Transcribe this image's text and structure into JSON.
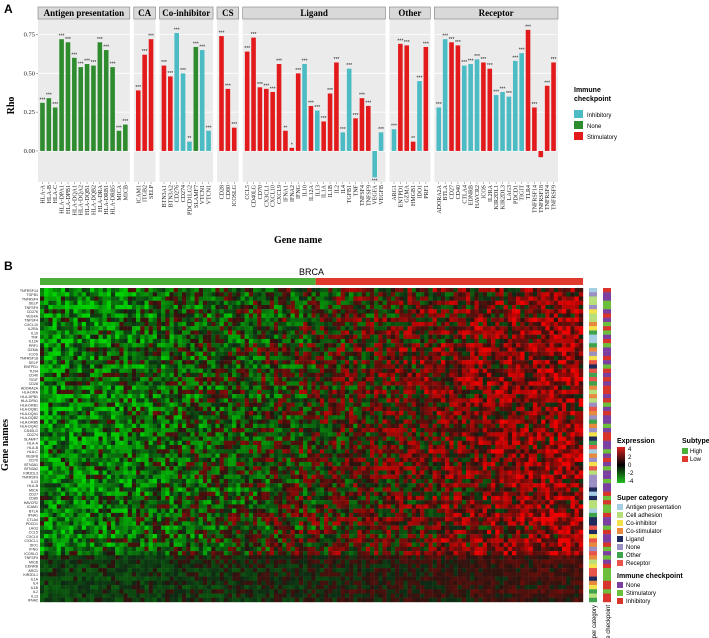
{
  "panel_a": "A",
  "panel_b": "B",
  "chart_data": [
    {
      "type": "bar",
      "xlabel": "Gene name",
      "ylabel": "Rho",
      "ylim": [
        -0.2,
        0.85
      ],
      "yticks": [
        "0.00",
        "0.25",
        "0.50",
        "0.75"
      ],
      "ytick_values": [
        0,
        0.25,
        0.5,
        0.75
      ],
      "grid": true,
      "legend_title": "Immune checkpoint",
      "legend_position": "right",
      "legend": [
        {
          "name": "Inhibitory",
          "color": "#4BBCC4"
        },
        {
          "name": "None",
          "color": "#2E8B2E"
        },
        {
          "name": "Stimulatory",
          "color": "#E31A1C"
        }
      ],
      "facets": [
        {
          "name": "Antigen presentation",
          "genes": [
            {
              "gene": "HLA-A",
              "value": 0.31,
              "type": "None",
              "sig": "***"
            },
            {
              "gene": "HLA-B",
              "value": 0.34,
              "type": "None",
              "sig": "***"
            },
            {
              "gene": "HLA-C",
              "value": 0.28,
              "type": "None",
              "sig": "***"
            },
            {
              "gene": "HLA-DPA1",
              "value": 0.72,
              "type": "None",
              "sig": "***"
            },
            {
              "gene": "HLA-DPB1",
              "value": 0.7,
              "type": "None",
              "sig": "***"
            },
            {
              "gene": "HLA-DQA1",
              "value": 0.6,
              "type": "None",
              "sig": "***"
            },
            {
              "gene": "HLA-DQA2",
              "value": 0.54,
              "type": "None",
              "sig": "***"
            },
            {
              "gene": "HLA-DQB1",
              "value": 0.56,
              "type": "None",
              "sig": "***"
            },
            {
              "gene": "HLA-DQB2",
              "value": 0.55,
              "type": "None",
              "sig": "***"
            },
            {
              "gene": "HLA-DRA",
              "value": 0.7,
              "type": "None",
              "sig": "***"
            },
            {
              "gene": "HLA-DRB1",
              "value": 0.65,
              "type": "None",
              "sig": "***"
            },
            {
              "gene": "HLA-DRB5",
              "value": 0.54,
              "type": "None",
              "sig": "***"
            },
            {
              "gene": "MICA",
              "value": 0.13,
              "type": "None",
              "sig": "***"
            },
            {
              "gene": "MICB",
              "value": 0.17,
              "type": "None",
              "sig": "***"
            }
          ]
        },
        {
          "name": "CA",
          "genes": [
            {
              "gene": "ICAM1",
              "value": 0.39,
              "type": "Stimulatory",
              "sig": "***"
            },
            {
              "gene": "ITGB2",
              "value": 0.62,
              "type": "Stimulatory",
              "sig": "***"
            },
            {
              "gene": "SELP",
              "value": 0.72,
              "type": "Stimulatory",
              "sig": "***"
            }
          ]
        },
        {
          "name": "Co-inhibitor",
          "genes": [
            {
              "gene": "BTN3A1",
              "value": 0.55,
              "type": "Stimulatory",
              "sig": "***"
            },
            {
              "gene": "BTN3A2",
              "value": 0.48,
              "type": "Stimulatory",
              "sig": "***"
            },
            {
              "gene": "CD276",
              "value": 0.76,
              "type": "Inhibitory",
              "sig": "***"
            },
            {
              "gene": "CD274",
              "value": 0.5,
              "type": "Inhibitory",
              "sig": "***"
            },
            {
              "gene": "PDCD1LG2",
              "value": 0.06,
              "type": "Inhibitory",
              "sig": "**"
            },
            {
              "gene": "SLAMF7",
              "value": 0.67,
              "type": "None",
              "sig": "***"
            },
            {
              "gene": "VTCN1",
              "value": 0.65,
              "type": "Inhibitory",
              "sig": "***"
            },
            {
              "gene": "VTCN1",
              "value": 0.13,
              "type": "Inhibitory",
              "sig": "***"
            }
          ]
        },
        {
          "name": "CS",
          "genes": [
            {
              "gene": "CD28",
              "value": 0.74,
              "type": "Stimulatory",
              "sig": "***"
            },
            {
              "gene": "CD80",
              "value": 0.4,
              "type": "Stimulatory",
              "sig": "***"
            },
            {
              "gene": "ICOSLG",
              "value": 0.15,
              "type": "Stimulatory",
              "sig": "***"
            }
          ]
        },
        {
          "name": "Ligand",
          "genes": [
            {
              "gene": "CCL5",
              "value": 0.64,
              "type": "Stimulatory",
              "sig": "***"
            },
            {
              "gene": "CD40LG",
              "value": 0.73,
              "type": "Stimulatory",
              "sig": "***"
            },
            {
              "gene": "CD70",
              "value": 0.41,
              "type": "Stimulatory",
              "sig": "***"
            },
            {
              "gene": "CX3CL1",
              "value": 0.4,
              "type": "Stimulatory",
              "sig": "***"
            },
            {
              "gene": "CXCL10",
              "value": 0.38,
              "type": "Stimulatory",
              "sig": "***"
            },
            {
              "gene": "CXCL9",
              "value": 0.56,
              "type": "Stimulatory",
              "sig": "***"
            },
            {
              "gene": "IFNA1",
              "value": 0.13,
              "type": "Stimulatory",
              "sig": "**"
            },
            {
              "gene": "IFNA2",
              "value": 0.02,
              "type": "Stimulatory",
              "sig": "*"
            },
            {
              "gene": "IFNG",
              "value": 0.5,
              "type": "Stimulatory",
              "sig": "***"
            },
            {
              "gene": "IL10",
              "value": 0.56,
              "type": "Inhibitory",
              "sig": "***"
            },
            {
              "gene": "IL12A",
              "value": 0.29,
              "type": "Stimulatory",
              "sig": "***"
            },
            {
              "gene": "IL13",
              "value": 0.26,
              "type": "Inhibitory",
              "sig": "***"
            },
            {
              "gene": "IL1A",
              "value": 0.19,
              "type": "Stimulatory",
              "sig": "***"
            },
            {
              "gene": "IL1B",
              "value": 0.37,
              "type": "Stimulatory",
              "sig": "***"
            },
            {
              "gene": "IL2",
              "value": 0.57,
              "type": "Stimulatory",
              "sig": "***"
            },
            {
              "gene": "IL4",
              "value": 0.12,
              "type": "Inhibitory",
              "sig": "***"
            },
            {
              "gene": "TGFB1",
              "value": 0.53,
              "type": "Inhibitory",
              "sig": "***"
            },
            {
              "gene": "TNF",
              "value": 0.21,
              "type": "Stimulatory",
              "sig": "***"
            },
            {
              "gene": "TNFSF4",
              "value": 0.34,
              "type": "Stimulatory",
              "sig": "***"
            },
            {
              "gene": "TNFSF9",
              "value": 0.29,
              "type": "Stimulatory",
              "sig": "***"
            },
            {
              "gene": "VEGFA",
              "value": -0.17,
              "type": "Inhibitory",
              "sig": "***"
            },
            {
              "gene": "VEGFB",
              "value": 0.12,
              "type": "Inhibitory",
              "sig": "***"
            }
          ]
        },
        {
          "name": "Other",
          "genes": [
            {
              "gene": "ARG1",
              "value": 0.14,
              "type": "Inhibitory",
              "sig": "***"
            },
            {
              "gene": "ENTPD1",
              "value": 0.69,
              "type": "Stimulatory",
              "sig": "***"
            },
            {
              "gene": "GZMA",
              "value": 0.68,
              "type": "Stimulatory",
              "sig": "***"
            },
            {
              "gene": "HMGB1",
              "value": 0.06,
              "type": "Stimulatory",
              "sig": "**"
            },
            {
              "gene": "IDO1",
              "value": 0.45,
              "type": "Inhibitory",
              "sig": "***"
            },
            {
              "gene": "PRF1",
              "value": 0.67,
              "type": "Stimulatory",
              "sig": "***"
            }
          ]
        },
        {
          "name": "Receptor",
          "genes": [
            {
              "gene": "ADORA2A",
              "value": 0.28,
              "type": "Inhibitory",
              "sig": "***"
            },
            {
              "gene": "BTLA",
              "value": 0.72,
              "type": "Inhibitory",
              "sig": "***"
            },
            {
              "gene": "CD27",
              "value": 0.7,
              "type": "Stimulatory",
              "sig": "***"
            },
            {
              "gene": "CD40",
              "value": 0.68,
              "type": "Stimulatory",
              "sig": "***"
            },
            {
              "gene": "CTLA4",
              "value": 0.55,
              "type": "Inhibitory",
              "sig": "***"
            },
            {
              "gene": "EDNRB",
              "value": 0.56,
              "type": "Inhibitory",
              "sig": "***"
            },
            {
              "gene": "HAVCR2",
              "value": 0.59,
              "type": "Inhibitory",
              "sig": "***"
            },
            {
              "gene": "ICOS",
              "value": 0.57,
              "type": "Stimulatory",
              "sig": "***"
            },
            {
              "gene": "IL2RA",
              "value": 0.53,
              "type": "Stimulatory",
              "sig": "***"
            },
            {
              "gene": "KIR2DL1",
              "value": 0.36,
              "type": "Inhibitory",
              "sig": "***"
            },
            {
              "gene": "KIR2DL3",
              "value": 0.38,
              "type": "Inhibitory",
              "sig": "***"
            },
            {
              "gene": "LAG3",
              "value": 0.35,
              "type": "Inhibitory",
              "sig": "***"
            },
            {
              "gene": "PDCD1",
              "value": 0.58,
              "type": "Inhibitory",
              "sig": "***"
            },
            {
              "gene": "TIGIT",
              "value": 0.63,
              "type": "Inhibitory",
              "sig": "***"
            },
            {
              "gene": "TLR4",
              "value": 0.78,
              "type": "Stimulatory",
              "sig": "***"
            },
            {
              "gene": "TNFRSF14",
              "value": 0.28,
              "type": "Stimulatory",
              "sig": "***"
            },
            {
              "gene": "TNFRSF18",
              "value": -0.04,
              "type": "Stimulatory",
              "sig": ""
            },
            {
              "gene": "TNFRSF4",
              "value": 0.42,
              "type": "Stimulatory",
              "sig": "***"
            },
            {
              "gene": "TNFRSF9",
              "value": 0.57,
              "type": "Stimulatory",
              "sig": "***"
            }
          ]
        }
      ]
    },
    {
      "type": "heatmap",
      "title": "BRCA",
      "ylabel": "Gene names",
      "subtype_title": "Subtype",
      "subtype_legend": [
        {
          "name": "High",
          "color": "#4CAF3A"
        },
        {
          "name": "Low",
          "color": "#E03A2F"
        }
      ],
      "expression_title": "Expression",
      "expression_ticks": [
        "4",
        "2",
        "0",
        "-2",
        "-4"
      ],
      "super_category_title": "Super category",
      "super_category_legend": [
        {
          "name": "Antigen presentation",
          "color": "#A6CEE3"
        },
        {
          "name": "Cell adhesion",
          "color": "#B8E07A"
        },
        {
          "name": "Co-inhibitor",
          "color": "#F2E14A"
        },
        {
          "name": "Co-stimulator",
          "color": "#E78A3E"
        },
        {
          "name": "Ligand",
          "color": "#1F2A5C"
        },
        {
          "name": "None",
          "color": "#9B8FC4"
        },
        {
          "name": "Other",
          "color": "#3FA34D"
        },
        {
          "name": "Receptor",
          "color": "#E8534A"
        }
      ],
      "immune_checkpoint_title": "Immune checkpoint",
      "immune_checkpoint_legend": [
        {
          "name": "None",
          "color": "#7B3FA0"
        },
        {
          "name": "Stimulatory",
          "color": "#6CBF3A"
        },
        {
          "name": "Inhibitory",
          "color": "#D7342B"
        }
      ],
      "bar_labels": [
        "Super category",
        "Immune checkpoint"
      ],
      "row_labels": [
        "TNFRSF14",
        "TGFB1",
        "TNFRSF4",
        "SELP",
        "TNFSF9",
        "CD276",
        "VEGFA",
        "TNFSF4",
        "CXCL10",
        "IL2RA",
        "IL10",
        "TNF",
        "IL12A",
        "PRF1",
        "GZMA",
        "ICOS",
        "TNFRSF18",
        "SELP",
        "ENTPD1",
        "TLR4",
        "CD40",
        "TIGIT",
        "CD28",
        "ADORA2A",
        "HLA-DRA",
        "HLA-DPB1",
        "HLA-DPA1",
        "HLA-DRB1",
        "HLA-DQB1",
        "HLA-DQA1",
        "HLA-DQB2",
        "HLA-DRB5",
        "HLA-DQA2",
        "CD40LG",
        "CD274",
        "SLAMF7",
        "HLA-A",
        "HLA-B",
        "HLA-C",
        "VEGFB",
        "CD70",
        "BTN3A1",
        "BTN3A2",
        "KIR2DL3",
        "TNFRSF9",
        "IL13",
        "HLA-B",
        "MICA",
        "CD27",
        "CD80",
        "HAVCR2",
        "ICAM1",
        "BTLA",
        "IFNA1",
        "CTLA4",
        "PDCD1",
        "LAG3",
        "CCL5",
        "CXCL9",
        "CX3CL1",
        "IDO1",
        "IFNG",
        "ICOSLG",
        "TNFSF9",
        "MICB",
        "EDNRB",
        "ARG1",
        "KIR2DL1",
        "IL1A",
        "IL4",
        "IL1B",
        "IL2",
        "IL13",
        "IFNA2"
      ]
    }
  ]
}
